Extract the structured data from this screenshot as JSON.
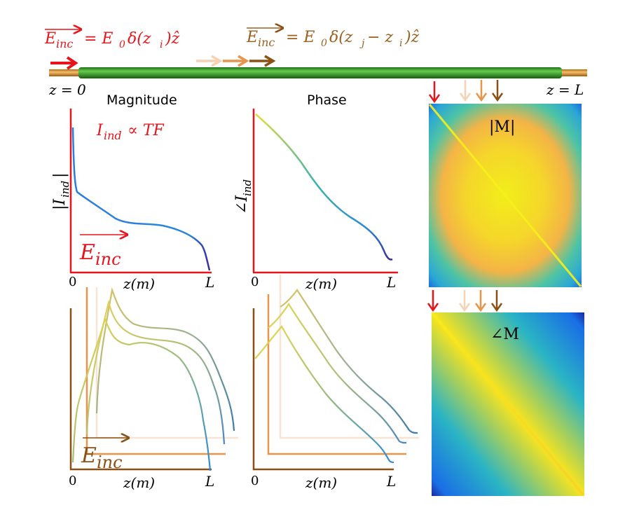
{
  "header": {
    "eq_red": {
      "lhs": "E",
      "lhs_sub": "inc",
      "rhs": "= E",
      "rhs_sub": "0",
      "rhs_tail": "δ(z",
      "rhs_sub2": "i",
      "rhs_end": ")ẑ"
    },
    "eq_brown": {
      "lhs": "E",
      "lhs_sub": "inc",
      "rhs": "= E",
      "rhs_sub": "0",
      "rhs_tail": "δ(z",
      "rhs_sub2": "j",
      "rhs_mid": " − z",
      "rhs_sub3": "i",
      "rhs_end": ")ẑ"
    }
  },
  "cable": {
    "left_label": "z = 0",
    "right_label": "z = L"
  },
  "panels": {
    "magnitude_title": "Magnitude",
    "phase_title": "Phase",
    "relation": {
      "lhs": "I",
      "lhs_sub": "ind",
      "rhs": " ∝ TF"
    },
    "mag_ylabel": {
      "text": "|I",
      "sub": "ind",
      "tail": "|"
    },
    "phase_ylabel": {
      "text": "∠I",
      "sub": "ind"
    },
    "einc_label": {
      "text": "E",
      "sub": "inc"
    },
    "x_zero": "0",
    "x_label": "z(m)",
    "x_end": "L"
  },
  "matrices": {
    "mag_label": "|M|",
    "phase_label": "∠M"
  },
  "colors": {
    "red": "#e8141c",
    "brown": "#8a5014",
    "orange": "#e8944a",
    "light_peach": "#f6d2b4",
    "green": "#2a9a1e",
    "copper": "#e0902a"
  }
}
